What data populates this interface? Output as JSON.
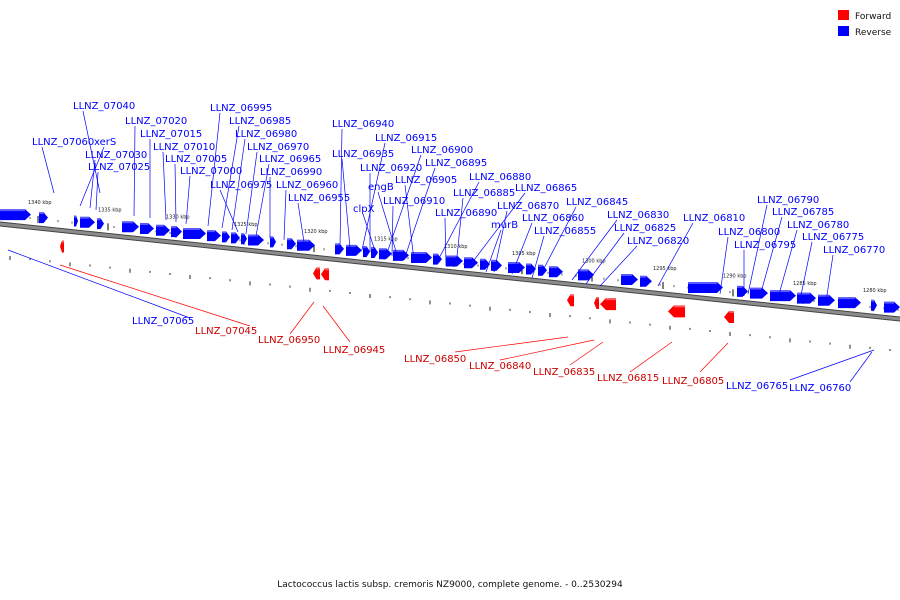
{
  "legend": {
    "forward": {
      "label": "Forward",
      "color": "#ff0000"
    },
    "reverse": {
      "label": "Reverse",
      "color": "#0000ff"
    }
  },
  "caption": "Lactococcus lactis subsp. cremoris NZ9000, complete genome. - 0..2530294",
  "scale_ticks": [
    "1340 kbp",
    "1335 kbp",
    "1330 kbp",
    "1325 kbp",
    "1320 kbp",
    "1315 kbp",
    "1310 kbp",
    "1305 kbp",
    "1300 kbp",
    "1295 kbp",
    "1290 kbp",
    "1285 kbp",
    "1280 kbp"
  ],
  "reverse_labels": [
    "LLNZ_07040",
    "LLNZ_07060",
    "xerS",
    "LLNZ_07030",
    "LLNZ_07025",
    "LLNZ_07020",
    "LLNZ_07015",
    "LLNZ_07010",
    "LLNZ_07005",
    "LLNZ_07000",
    "LLNZ_06995",
    "LLNZ_06985",
    "LLNZ_06980",
    "LLNZ_06975",
    "LLNZ_06970",
    "LLNZ_06965",
    "LLNZ_06990",
    "LLNZ_06960",
    "LLNZ_06955",
    "LLNZ_06940",
    "LLNZ_06935",
    "LLNZ_06915",
    "LLNZ_06920",
    "LLNZ_06900",
    "LLNZ_06895",
    "engB",
    "LLNZ_06905",
    "LLNZ_06880",
    "clpX",
    "LLNZ_06910",
    "LLNZ_06885",
    "LLNZ_06865",
    "LLNZ_06890",
    "LLNZ_06870",
    "murB",
    "LLNZ_06860",
    "LLNZ_06845",
    "LLNZ_06855",
    "LLNZ_06830",
    "LLNZ_06825",
    "LLNZ_06820",
    "LLNZ_06810",
    "LLNZ_06790",
    "LLNZ_06785",
    "LLNZ_06780",
    "LLNZ_06800",
    "LLNZ_06775",
    "LLNZ_06795",
    "LLNZ_06770",
    "LLNZ_07065",
    "LLNZ_06765",
    "LLNZ_06760"
  ],
  "forward_labels": [
    "LLNZ_07045",
    "LLNZ_06950",
    "LLNZ_06945",
    "LLNZ_06850",
    "LLNZ_06840",
    "LLNZ_06835",
    "LLNZ_06815",
    "LLNZ_06805"
  ]
}
